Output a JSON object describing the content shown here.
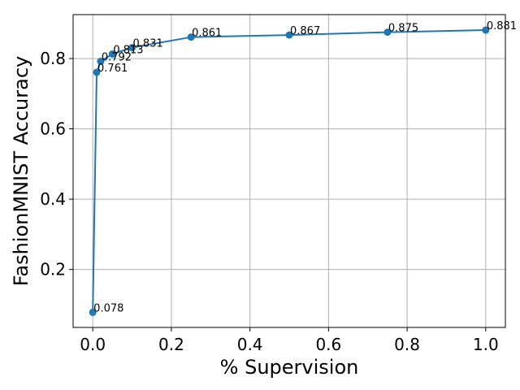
{
  "chart_data": {
    "type": "line",
    "xlabel": "% Supervision",
    "ylabel": "FashionMNIST Accuracy",
    "xlim": [
      -0.05,
      1.05
    ],
    "ylim": [
      0.035,
      0.925
    ],
    "xticks": [
      0.0,
      0.2,
      0.4,
      0.6,
      0.8,
      1.0
    ],
    "xtick_labels": [
      "0.0",
      "0.2",
      "0.4",
      "0.6",
      "0.8",
      "1.0"
    ],
    "yticks": [
      0.2,
      0.4,
      0.6,
      0.8
    ],
    "ytick_labels": [
      "0.2",
      "0.4",
      "0.6",
      "0.8"
    ],
    "grid": true,
    "color": "#1f77b4",
    "series": [
      {
        "x": [
          0.0,
          0.01,
          0.02,
          0.05,
          0.1,
          0.25,
          0.5,
          0.75,
          1.0
        ],
        "y": [
          0.078,
          0.761,
          0.792,
          0.813,
          0.831,
          0.861,
          0.867,
          0.875,
          0.881
        ],
        "labels": [
          "0.078",
          "0.761",
          "0.792",
          "0.813",
          "0.831",
          "0.861",
          "0.867",
          "0.875",
          "0.881"
        ]
      }
    ]
  }
}
